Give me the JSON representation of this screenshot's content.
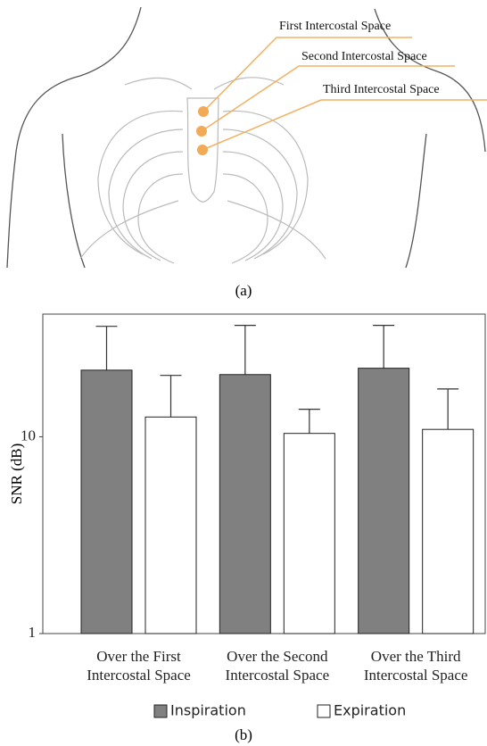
{
  "diagram": {
    "labels": [
      "First Intercostal Space",
      "Second Intercostal Space",
      "Third Intercostal Space"
    ],
    "caption": "(a)"
  },
  "chart_data": {
    "type": "bar",
    "caption": "(b)",
    "y_label": "SNR (dB)",
    "categories": [
      "Over the First\nIntercostal Space",
      "Over the Second\nIntercostal Space",
      "Over the Third\nIntercostal Space"
    ],
    "series": [
      {
        "name": "Inspiration",
        "color": "#808080",
        "values": [
          21.8,
          20.7,
          22.3
        ],
        "errors": [
          14.6,
          16.1,
          14.5
        ]
      },
      {
        "name": "Expiration",
        "color": "#ffffff",
        "values": [
          12.6,
          10.4,
          10.9
        ],
        "errors": [
          7.9,
          3.4,
          6.6
        ]
      }
    ],
    "ylim": [
      1,
      42
    ],
    "yticks": [
      1,
      10
    ],
    "log_scale": true,
    "grid": false,
    "legend": "bottom"
  }
}
